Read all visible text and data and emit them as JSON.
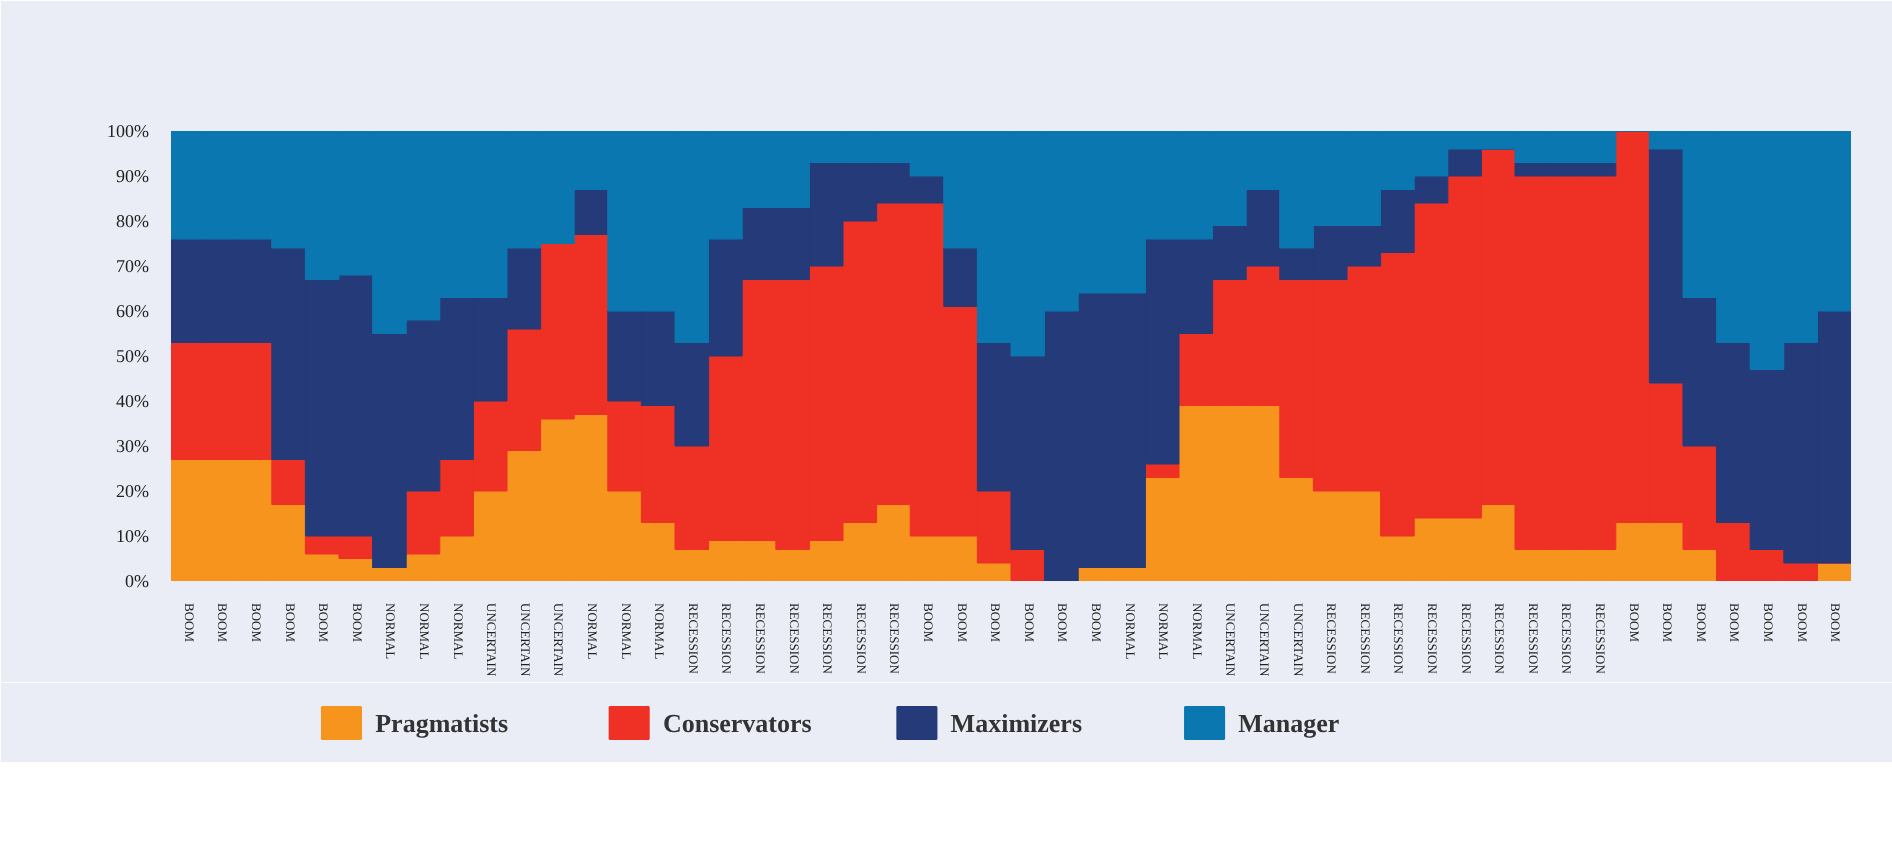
{
  "chart_data": {
    "type": "bar",
    "stacked": true,
    "legend": "bottom",
    "categories": [
      "BOOM",
      "BOOM",
      "BOOM",
      "BOOM",
      "BOOM",
      "BOOM",
      "NORMAL",
      "NORMAL",
      "NORMAL",
      "UNCERTAIN",
      "UNCERTAIN",
      "UNCERTAIN",
      "NORMAL",
      "NORMAL",
      "NORMAL",
      "RECESSION",
      "RECESSION",
      "RECESSION",
      "RECESSION",
      "RECESSION",
      "RECESSION",
      "RECESSION",
      "BOOM",
      "BOOM",
      "BOOM",
      "BOOM",
      "BOOM",
      "BOOM",
      "NORMAL",
      "NORMAL",
      "NORMAL",
      "UNCERTAIN",
      "UNCERTAIN",
      "UNCERTAIN",
      "RECESSION",
      "RECESSION",
      "RECESSION",
      "RECESSION",
      "RECESSION",
      "RECESSION",
      "RECESSION",
      "RECESSION",
      "RECESSION",
      "BOOM",
      "BOOM",
      "BOOM",
      "BOOM",
      "BOOM",
      "BOOM",
      "BOOM"
    ],
    "ylim": [
      0,
      100
    ],
    "yticks": [
      {
        "value": 0,
        "label": "0%"
      },
      {
        "value": 10,
        "label": "10%"
      },
      {
        "value": 20,
        "label": "20%"
      },
      {
        "value": 30,
        "label": "30%"
      },
      {
        "value": 40,
        "label": "40%"
      },
      {
        "value": 50,
        "label": "50%"
      },
      {
        "value": 60,
        "label": "60%"
      },
      {
        "value": 70,
        "label": "70%"
      },
      {
        "value": 80,
        "label": "80%"
      },
      {
        "value": 90,
        "label": "90%"
      },
      {
        "value": 100,
        "label": "100%"
      }
    ],
    "series": [
      {
        "name": "Pragmatists",
        "color": "#f7941d",
        "values": [
          27,
          27,
          27,
          17,
          6,
          5,
          3,
          6,
          10,
          20,
          29,
          36,
          37,
          20,
          13,
          7,
          9,
          9,
          7,
          9,
          13,
          17,
          10,
          10,
          4,
          0,
          0,
          3,
          3,
          23,
          39,
          39,
          39,
          23,
          20,
          20,
          10,
          14,
          14,
          17,
          7,
          7,
          7,
          13,
          13,
          7,
          0,
          0,
          0,
          4
        ]
      },
      {
        "name": "Conservators",
        "color": "#ee3124",
        "values": [
          26,
          26,
          26,
          10,
          4,
          5,
          0,
          14,
          17,
          20,
          27,
          39,
          40,
          20,
          26,
          23,
          41,
          58,
          60,
          61,
          67,
          67,
          74,
          51,
          16,
          7,
          0,
          0,
          0,
          3,
          16,
          28,
          31,
          44,
          47,
          50,
          63,
          70,
          76,
          79,
          83,
          83,
          83,
          87,
          31,
          23,
          13,
          7,
          4,
          0
        ]
      },
      {
        "name": "Maximizers",
        "color": "#253a78",
        "values": [
          23,
          23,
          23,
          47,
          57,
          58,
          52,
          38,
          36,
          23,
          18,
          0,
          10,
          20,
          21,
          23,
          26,
          16,
          16,
          23,
          13,
          9,
          6,
          13,
          33,
          43,
          60,
          61,
          61,
          50,
          21,
          12,
          17,
          7,
          12,
          9,
          14,
          6,
          6,
          0,
          3,
          3,
          3,
          0,
          52,
          33,
          40,
          40,
          49,
          56
        ]
      },
      {
        "name": "Manager",
        "color": "#0a77b0",
        "values": [
          24,
          24,
          24,
          26,
          33,
          32,
          45,
          42,
          37,
          37,
          26,
          25,
          13,
          40,
          40,
          47,
          24,
          17,
          17,
          7,
          7,
          7,
          10,
          26,
          47,
          50,
          40,
          36,
          36,
          24,
          24,
          21,
          13,
          26,
          21,
          21,
          13,
          10,
          4,
          4,
          7,
          7,
          7,
          0,
          4,
          37,
          47,
          53,
          47,
          40
        ]
      }
    ]
  }
}
